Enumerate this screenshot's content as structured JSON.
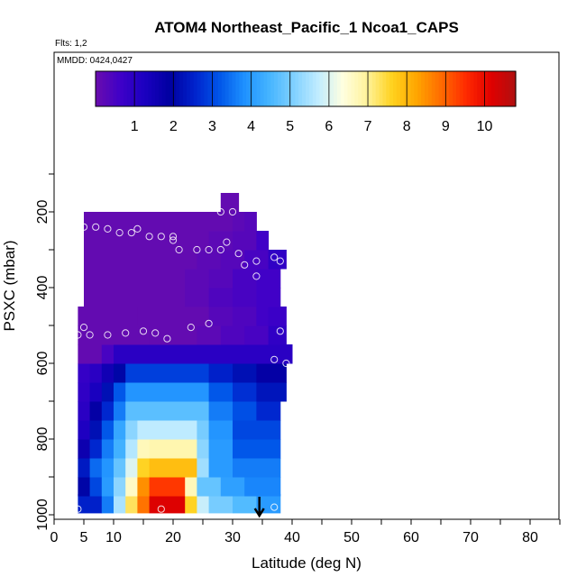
{
  "chart_data": {
    "type": "heatmap",
    "title": "ATOM4 Northeast_Pacific_1 Ncoa1_CAPS",
    "flights_label": "Flts: 1,2",
    "date_label": "MMDD: 0424,0427",
    "xlabel": "Latitude (deg N)",
    "ylabel": "PSXC (mbar)",
    "xlim": [
      0,
      85
    ],
    "ylim": [
      1000,
      0
    ],
    "x_ticks": [
      0,
      5,
      10,
      20,
      30,
      40,
      50,
      60,
      70,
      80
    ],
    "y_ticks": [
      200,
      400,
      600,
      800,
      1000
    ],
    "colorbar": {
      "min": 0,
      "max": 10.8,
      "ticks": [
        1,
        2,
        3,
        4,
        5,
        6,
        7,
        8,
        9,
        10
      ],
      "colors": [
        "#6a0dad",
        "#3f00c8",
        "#1a00c0",
        "#0000a0",
        "#0022cc",
        "#0055e8",
        "#1e90ff",
        "#44b4ff",
        "#7fd0ff",
        "#c0ecff",
        "#ffffe0",
        "#fff29a",
        "#ffd21e",
        "#ffa500",
        "#ff6a00",
        "#ff2a00",
        "#e00000",
        "#b01010"
      ]
    },
    "grid": false,
    "legend": "colorbar top",
    "pressure_levels": [
      970,
      925,
      875,
      825,
      775,
      725,
      675,
      625,
      575,
      525,
      475,
      425,
      375,
      325,
      275,
      225,
      175
    ],
    "rows": [
      {
        "p": 970,
        "segments": [
          [
            4,
            8,
            2.5
          ],
          [
            8,
            10,
            3.6
          ],
          [
            10,
            12,
            5.5
          ],
          [
            12,
            14,
            7.3
          ],
          [
            14,
            16,
            8.8
          ],
          [
            16,
            22,
            10.2
          ],
          [
            22,
            24,
            7.6
          ],
          [
            24,
            26,
            5.8
          ],
          [
            26,
            30,
            5.0
          ],
          [
            30,
            34,
            4.6
          ],
          [
            34,
            38,
            4.0
          ]
        ]
      },
      {
        "p": 925,
        "segments": [
          [
            4,
            6,
            2.0
          ],
          [
            6,
            8,
            3.0
          ],
          [
            8,
            10,
            4.0
          ],
          [
            10,
            12,
            5.2
          ],
          [
            12,
            14,
            6.6
          ],
          [
            14,
            16,
            8.5
          ],
          [
            16,
            22,
            9.4
          ],
          [
            22,
            24,
            6.7
          ],
          [
            24,
            28,
            4.8
          ],
          [
            28,
            32,
            4.1
          ],
          [
            32,
            38,
            3.7
          ]
        ]
      },
      {
        "p": 875,
        "segments": [
          [
            4,
            6,
            2.4
          ],
          [
            6,
            8,
            3.4
          ],
          [
            8,
            10,
            3.9
          ],
          [
            10,
            12,
            4.8
          ],
          [
            12,
            14,
            6.0
          ],
          [
            14,
            16,
            7.6
          ],
          [
            16,
            24,
            7.9
          ],
          [
            24,
            26,
            5.4
          ],
          [
            26,
            30,
            4.0
          ],
          [
            30,
            38,
            3.6
          ]
        ]
      },
      {
        "p": 825,
        "segments": [
          [
            4,
            6,
            1.6
          ],
          [
            6,
            8,
            2.6
          ],
          [
            8,
            10,
            3.6
          ],
          [
            10,
            12,
            4.4
          ],
          [
            12,
            14,
            5.6
          ],
          [
            14,
            16,
            6.7
          ],
          [
            16,
            24,
            6.8
          ],
          [
            24,
            26,
            5.2
          ],
          [
            26,
            30,
            4.0
          ],
          [
            30,
            38,
            3.2
          ]
        ]
      },
      {
        "p": 775,
        "segments": [
          [
            4,
            6,
            1.2
          ],
          [
            6,
            8,
            2.2
          ],
          [
            8,
            10,
            3.2
          ],
          [
            10,
            12,
            4.2
          ],
          [
            12,
            14,
            5.2
          ],
          [
            14,
            24,
            5.7
          ],
          [
            24,
            26,
            5.0
          ],
          [
            26,
            30,
            3.9
          ],
          [
            30,
            38,
            3.0
          ]
        ]
      },
      {
        "p": 725,
        "segments": [
          [
            4,
            6,
            1.0
          ],
          [
            6,
            8,
            1.8
          ],
          [
            8,
            10,
            2.6
          ],
          [
            10,
            12,
            3.6
          ],
          [
            12,
            26,
            4.7
          ],
          [
            26,
            30,
            3.6
          ],
          [
            30,
            34,
            3.1
          ],
          [
            34,
            38,
            2.6
          ]
        ]
      },
      {
        "p": 675,
        "segments": [
          [
            4,
            6,
            0.9
          ],
          [
            6,
            8,
            1.3
          ],
          [
            8,
            10,
            2.2
          ],
          [
            10,
            12,
            3.2
          ],
          [
            12,
            26,
            3.9
          ],
          [
            26,
            30,
            3.2
          ],
          [
            30,
            34,
            2.7
          ],
          [
            34,
            39,
            2.3
          ]
        ]
      },
      {
        "p": 625,
        "segments": [
          [
            4,
            6,
            0.8
          ],
          [
            6,
            8,
            1.0
          ],
          [
            8,
            10,
            1.5
          ],
          [
            10,
            12,
            2.0
          ],
          [
            12,
            26,
            2.9
          ],
          [
            26,
            30,
            2.5
          ],
          [
            30,
            34,
            2.2
          ],
          [
            34,
            39,
            1.8
          ]
        ]
      },
      {
        "p": 575,
        "segments": [
          [
            4,
            8,
            0.1
          ],
          [
            8,
            10,
            0.5
          ],
          [
            10,
            40,
            1.0
          ]
        ]
      },
      {
        "p": 525,
        "segments": [
          [
            4,
            16,
            0.1
          ],
          [
            16,
            24,
            0.1
          ],
          [
            24,
            28,
            0.2
          ],
          [
            28,
            32,
            0.4
          ],
          [
            32,
            36,
            0.5
          ],
          [
            36,
            39,
            0.9
          ]
        ]
      },
      {
        "p": 475,
        "segments": [
          [
            4,
            14,
            0.1
          ],
          [
            14,
            26,
            0.1
          ],
          [
            26,
            30,
            0.3
          ],
          [
            30,
            34,
            0.4
          ],
          [
            34,
            36,
            0.6
          ],
          [
            36,
            39,
            0.7
          ]
        ]
      },
      {
        "p": 425,
        "segments": [
          [
            5,
            22,
            0.1
          ],
          [
            22,
            26,
            0.2
          ],
          [
            26,
            30,
            0.4
          ],
          [
            30,
            34,
            0.5
          ],
          [
            34,
            38,
            0.6
          ]
        ]
      },
      {
        "p": 375,
        "segments": [
          [
            5,
            22,
            0.1
          ],
          [
            22,
            26,
            0.2
          ],
          [
            26,
            30,
            0.3
          ],
          [
            30,
            34,
            0.5
          ],
          [
            34,
            38,
            0.6
          ]
        ]
      },
      {
        "p": 325,
        "segments": [
          [
            5,
            24,
            0.1
          ],
          [
            24,
            28,
            0.2
          ],
          [
            28,
            32,
            0.3
          ],
          [
            32,
            36,
            0.5
          ],
          [
            36,
            39,
            0.9
          ]
        ]
      },
      {
        "p": 275,
        "segments": [
          [
            5,
            26,
            0.1
          ],
          [
            26,
            30,
            0.2
          ],
          [
            30,
            34,
            0.3
          ],
          [
            34,
            36,
            0.6
          ]
        ]
      },
      {
        "p": 225,
        "segments": [
          [
            5,
            30,
            0.1
          ],
          [
            30,
            32,
            0.2
          ],
          [
            32,
            34,
            0.3
          ]
        ]
      },
      {
        "p": 175,
        "segments": [
          [
            28,
            31,
            0.1
          ]
        ]
      }
    ],
    "observation_points": [
      [
        4,
        525
      ],
      [
        5,
        505
      ],
      [
        6,
        525
      ],
      [
        9,
        525
      ],
      [
        12,
        520
      ],
      [
        15,
        515
      ],
      [
        17,
        520
      ],
      [
        19,
        535
      ],
      [
        23,
        505
      ],
      [
        26,
        495
      ],
      [
        5,
        240
      ],
      [
        7,
        240
      ],
      [
        9,
        245
      ],
      [
        11,
        255
      ],
      [
        13,
        255
      ],
      [
        14,
        245
      ],
      [
        16,
        265
      ],
      [
        18,
        265
      ],
      [
        20,
        275
      ],
      [
        20,
        265
      ],
      [
        21,
        300
      ],
      [
        24,
        300
      ],
      [
        26,
        300
      ],
      [
        28,
        300
      ],
      [
        29,
        280
      ],
      [
        31,
        310
      ],
      [
        32,
        340
      ],
      [
        34,
        330
      ],
      [
        37,
        320
      ],
      [
        38,
        330
      ],
      [
        28,
        200
      ],
      [
        30,
        200
      ],
      [
        34,
        370
      ],
      [
        37,
        590
      ],
      [
        38,
        515
      ],
      [
        39,
        600
      ],
      [
        4,
        985
      ],
      [
        18,
        985
      ],
      [
        37,
        980
      ]
    ],
    "marker": {
      "x": 34.5,
      "p": 1000
    }
  }
}
